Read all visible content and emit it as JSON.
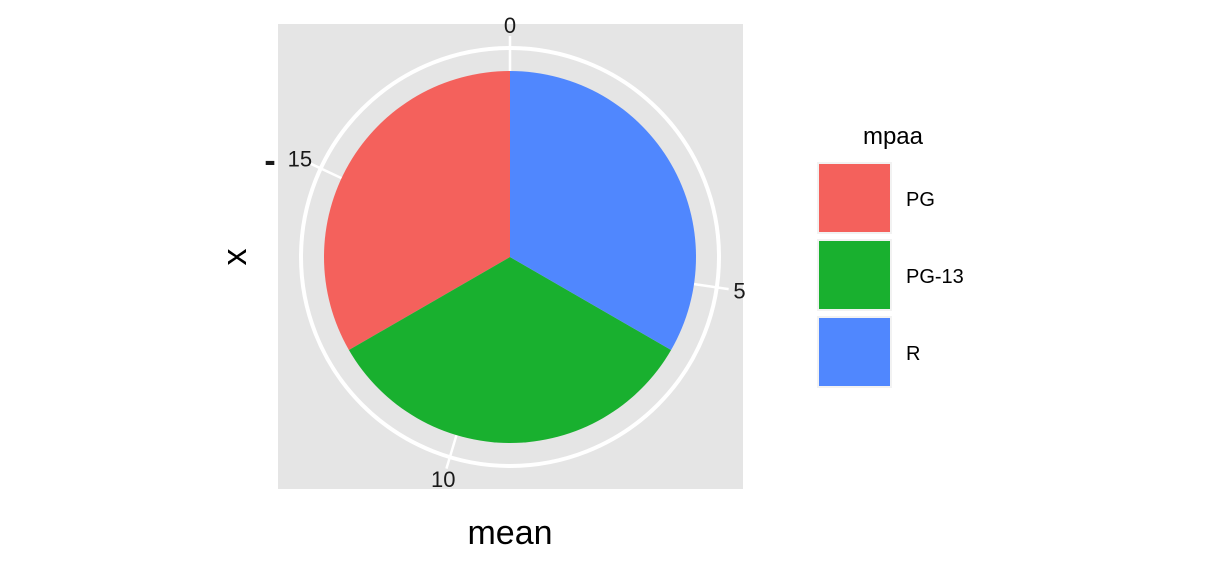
{
  "chart_data": {
    "type": "pie",
    "categories": [
      "PG",
      "PG-13",
      "R"
    ],
    "values": [
      6.1,
      6.1,
      6.1
    ],
    "theta_ticks": [
      "0",
      "5",
      "10",
      "15"
    ],
    "theta_tick_values": [
      0,
      5,
      10,
      15
    ],
    "theta_total": 18.3,
    "xlabel": "mean",
    "ylabel": "x",
    "y_tick_label": "-",
    "legend": {
      "title": "mpaa",
      "position": "right"
    },
    "grid": true
  },
  "colors": {
    "PG": "#F4615C",
    "PG-13": "#19B02F",
    "R": "#5087FE",
    "panel_background": "#E5E5E5",
    "grid": "#FFFFFF"
  }
}
